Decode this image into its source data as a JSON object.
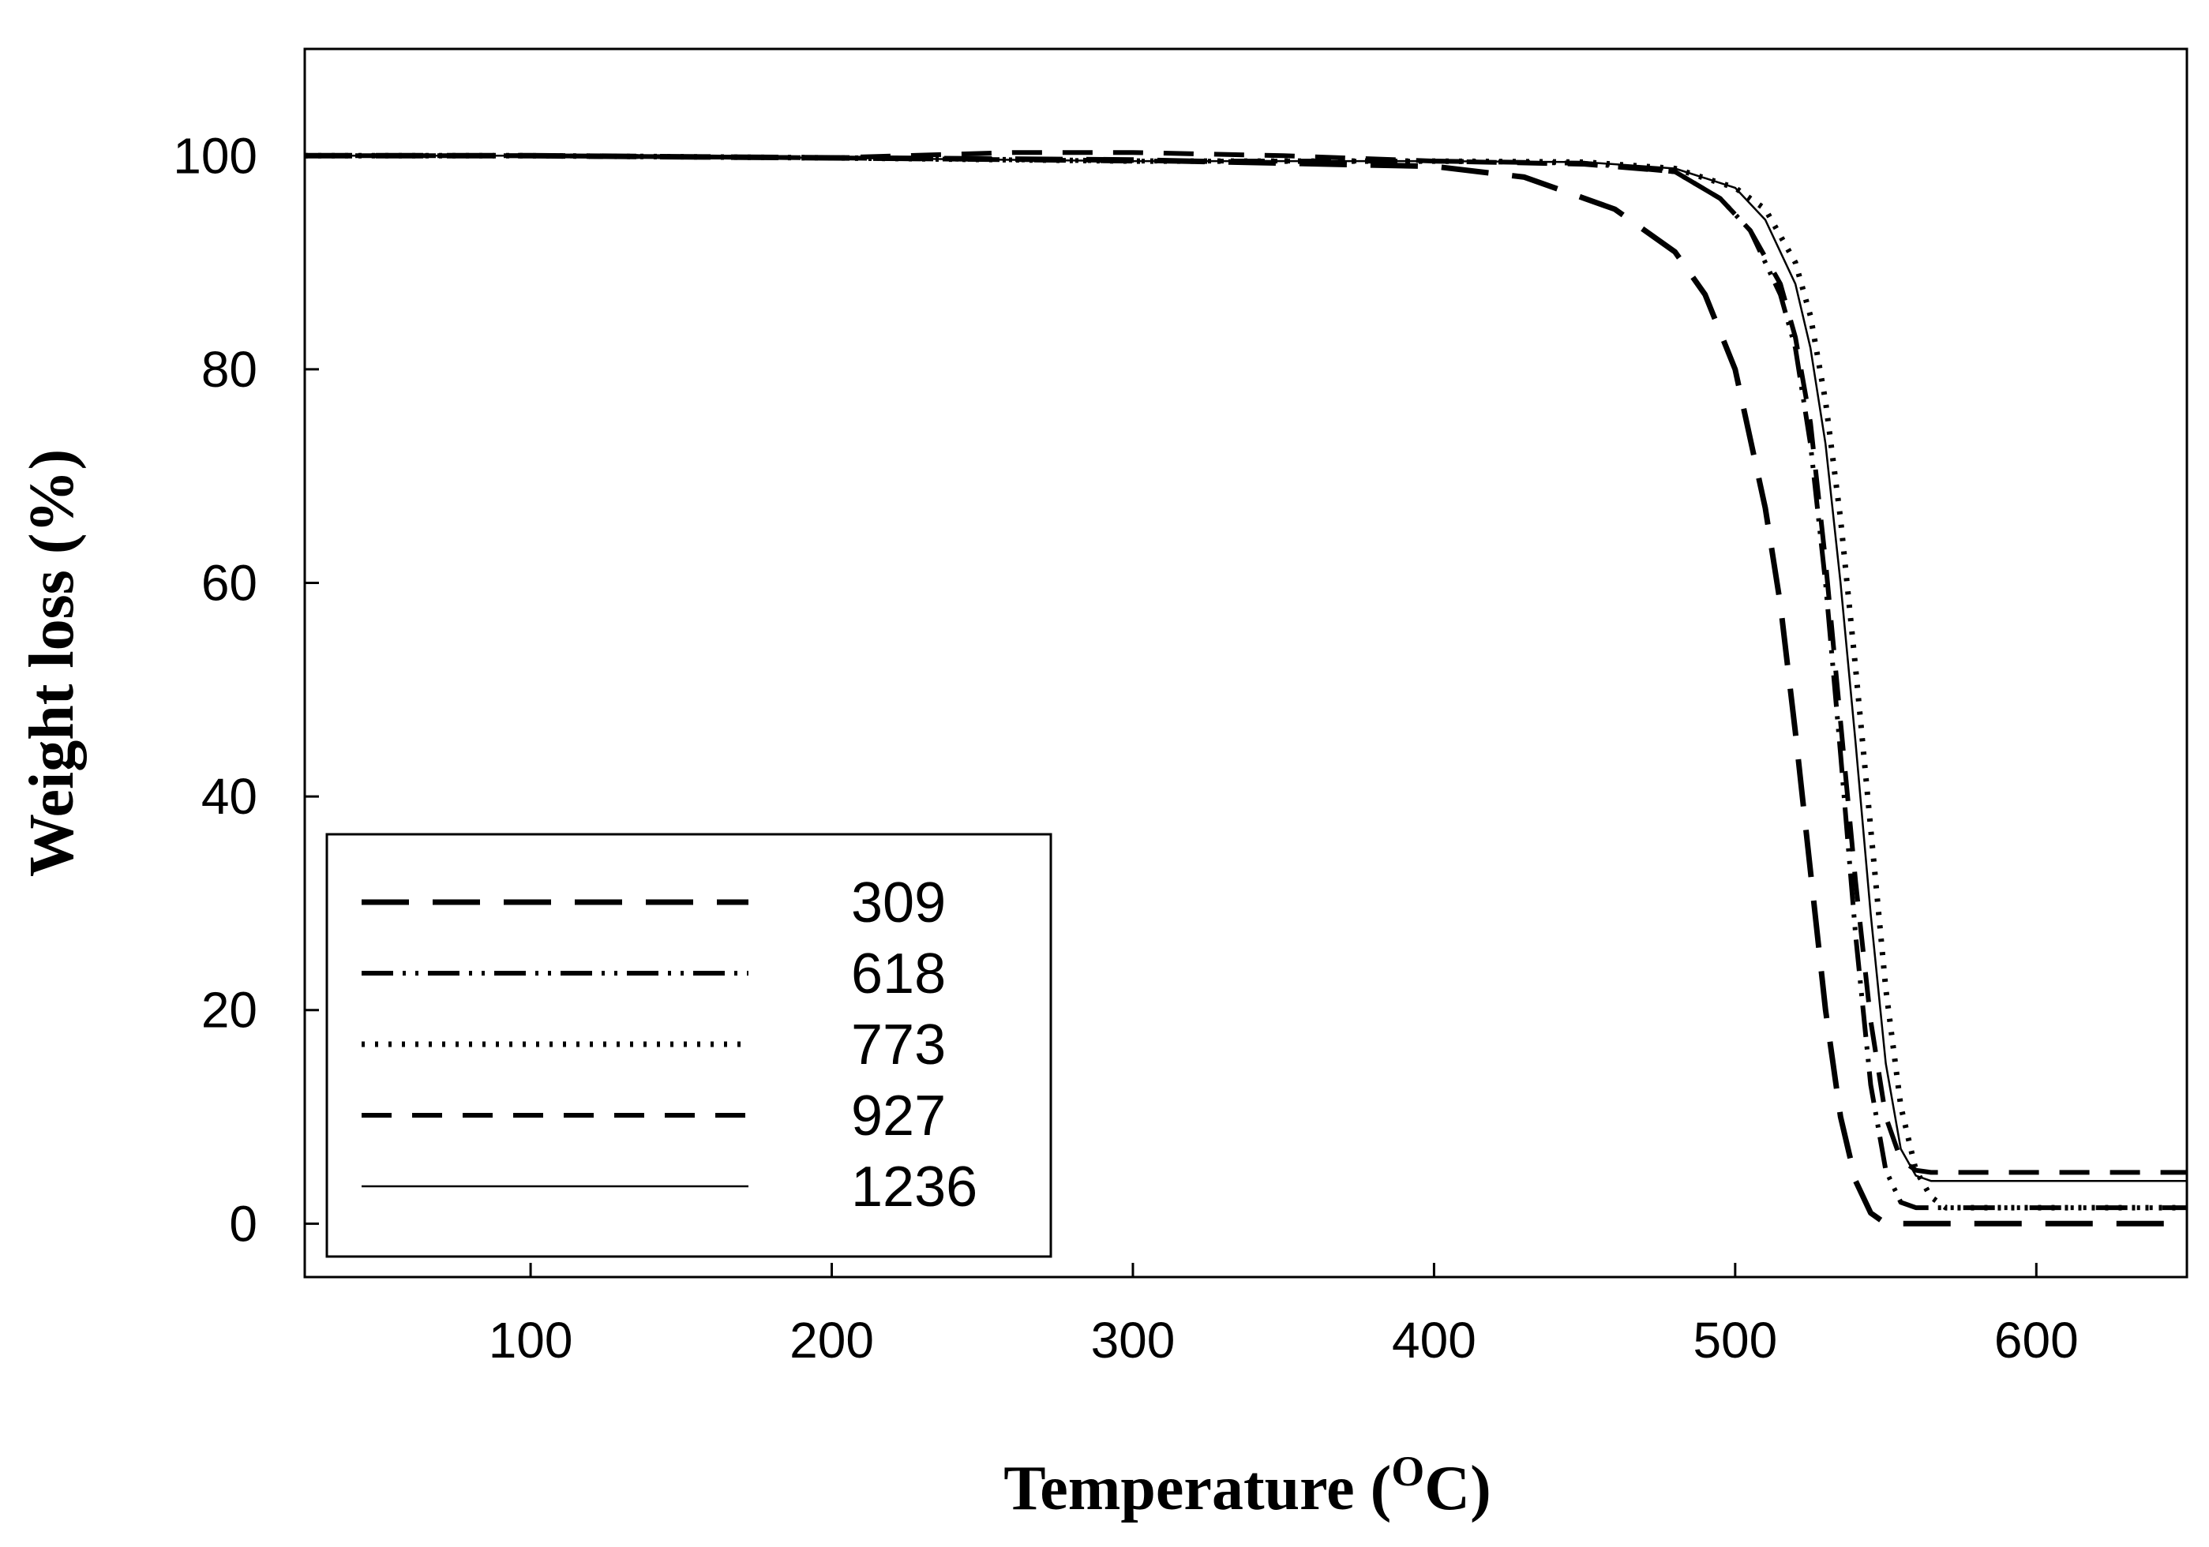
{
  "chart_data": {
    "type": "line",
    "title": "",
    "xlabel": "Temperature (",
    "xlabel_sup": "O",
    "xlabel_unit": "C)",
    "ylabel": "Weight loss (%)",
    "xlim": [
      25,
      650
    ],
    "ylim": [
      -5,
      110
    ],
    "xticks": [
      100,
      200,
      300,
      400,
      500,
      600
    ],
    "yticks": [
      0,
      20,
      40,
      60,
      80,
      100
    ],
    "grid": false,
    "legend_position": "bottom-left",
    "series": [
      {
        "name": "309",
        "style": "long-dash",
        "x": [
          25,
          100,
          200,
          300,
          400,
          430,
          460,
          480,
          490,
          500,
          510,
          515,
          520,
          525,
          530,
          535,
          540,
          545,
          550,
          555,
          560,
          600,
          650
        ],
        "y": [
          100,
          100,
          99.8,
          99.6,
          99,
          98,
          95,
          91,
          87,
          80,
          67,
          58,
          46,
          33,
          20,
          10,
          4,
          1,
          0,
          0,
          0,
          0,
          0
        ]
      },
      {
        "name": "618",
        "style": "dash-dot-dot",
        "x": [
          25,
          100,
          200,
          300,
          400,
          450,
          480,
          495,
          505,
          515,
          520,
          525,
          530,
          535,
          540,
          545,
          550,
          555,
          560,
          600,
          650
        ],
        "y": [
          100,
          100,
          99.8,
          99.5,
          99.5,
          99.3,
          98.5,
          96,
          93,
          87,
          82,
          73,
          60,
          44,
          27,
          13,
          5,
          2,
          1.5,
          1.5,
          1.5
        ]
      },
      {
        "name": "773",
        "style": "dotted",
        "x": [
          25,
          100,
          200,
          300,
          400,
          450,
          480,
          500,
          510,
          520,
          525,
          530,
          535,
          540,
          545,
          550,
          555,
          560,
          565,
          570,
          600,
          650
        ],
        "y": [
          100,
          100,
          99.8,
          99.5,
          99.5,
          99.4,
          98.8,
          97,
          95,
          90,
          85,
          77,
          66,
          52,
          37,
          22,
          11,
          5,
          2.5,
          1.5,
          1.5,
          1.5
        ]
      },
      {
        "name": "927",
        "style": "medium-dash",
        "x": [
          25,
          100,
          200,
          260,
          300,
          350,
          400,
          450,
          480,
          495,
          505,
          515,
          520,
          525,
          530,
          535,
          540,
          545,
          550,
          555,
          560,
          565,
          600,
          650
        ],
        "y": [
          100,
          100,
          99.8,
          100.3,
          100.3,
          100,
          99.5,
          99.2,
          98.5,
          96,
          93,
          88,
          83,
          75,
          62,
          47,
          32,
          19,
          10,
          6,
          5,
          4.8,
          4.8,
          4.8
        ]
      },
      {
        "name": "1236",
        "style": "solid-thin",
        "x": [
          25,
          100,
          200,
          300,
          400,
          450,
          480,
          500,
          510,
          520,
          525,
          530,
          535,
          540,
          545,
          550,
          555,
          560,
          565,
          600,
          650
        ],
        "y": [
          100,
          100,
          99.8,
          99.5,
          99.5,
          99.4,
          98.8,
          97,
          94,
          88,
          82,
          73,
          60,
          45,
          29,
          15,
          7,
          4.5,
          4,
          4,
          4
        ]
      }
    ]
  }
}
